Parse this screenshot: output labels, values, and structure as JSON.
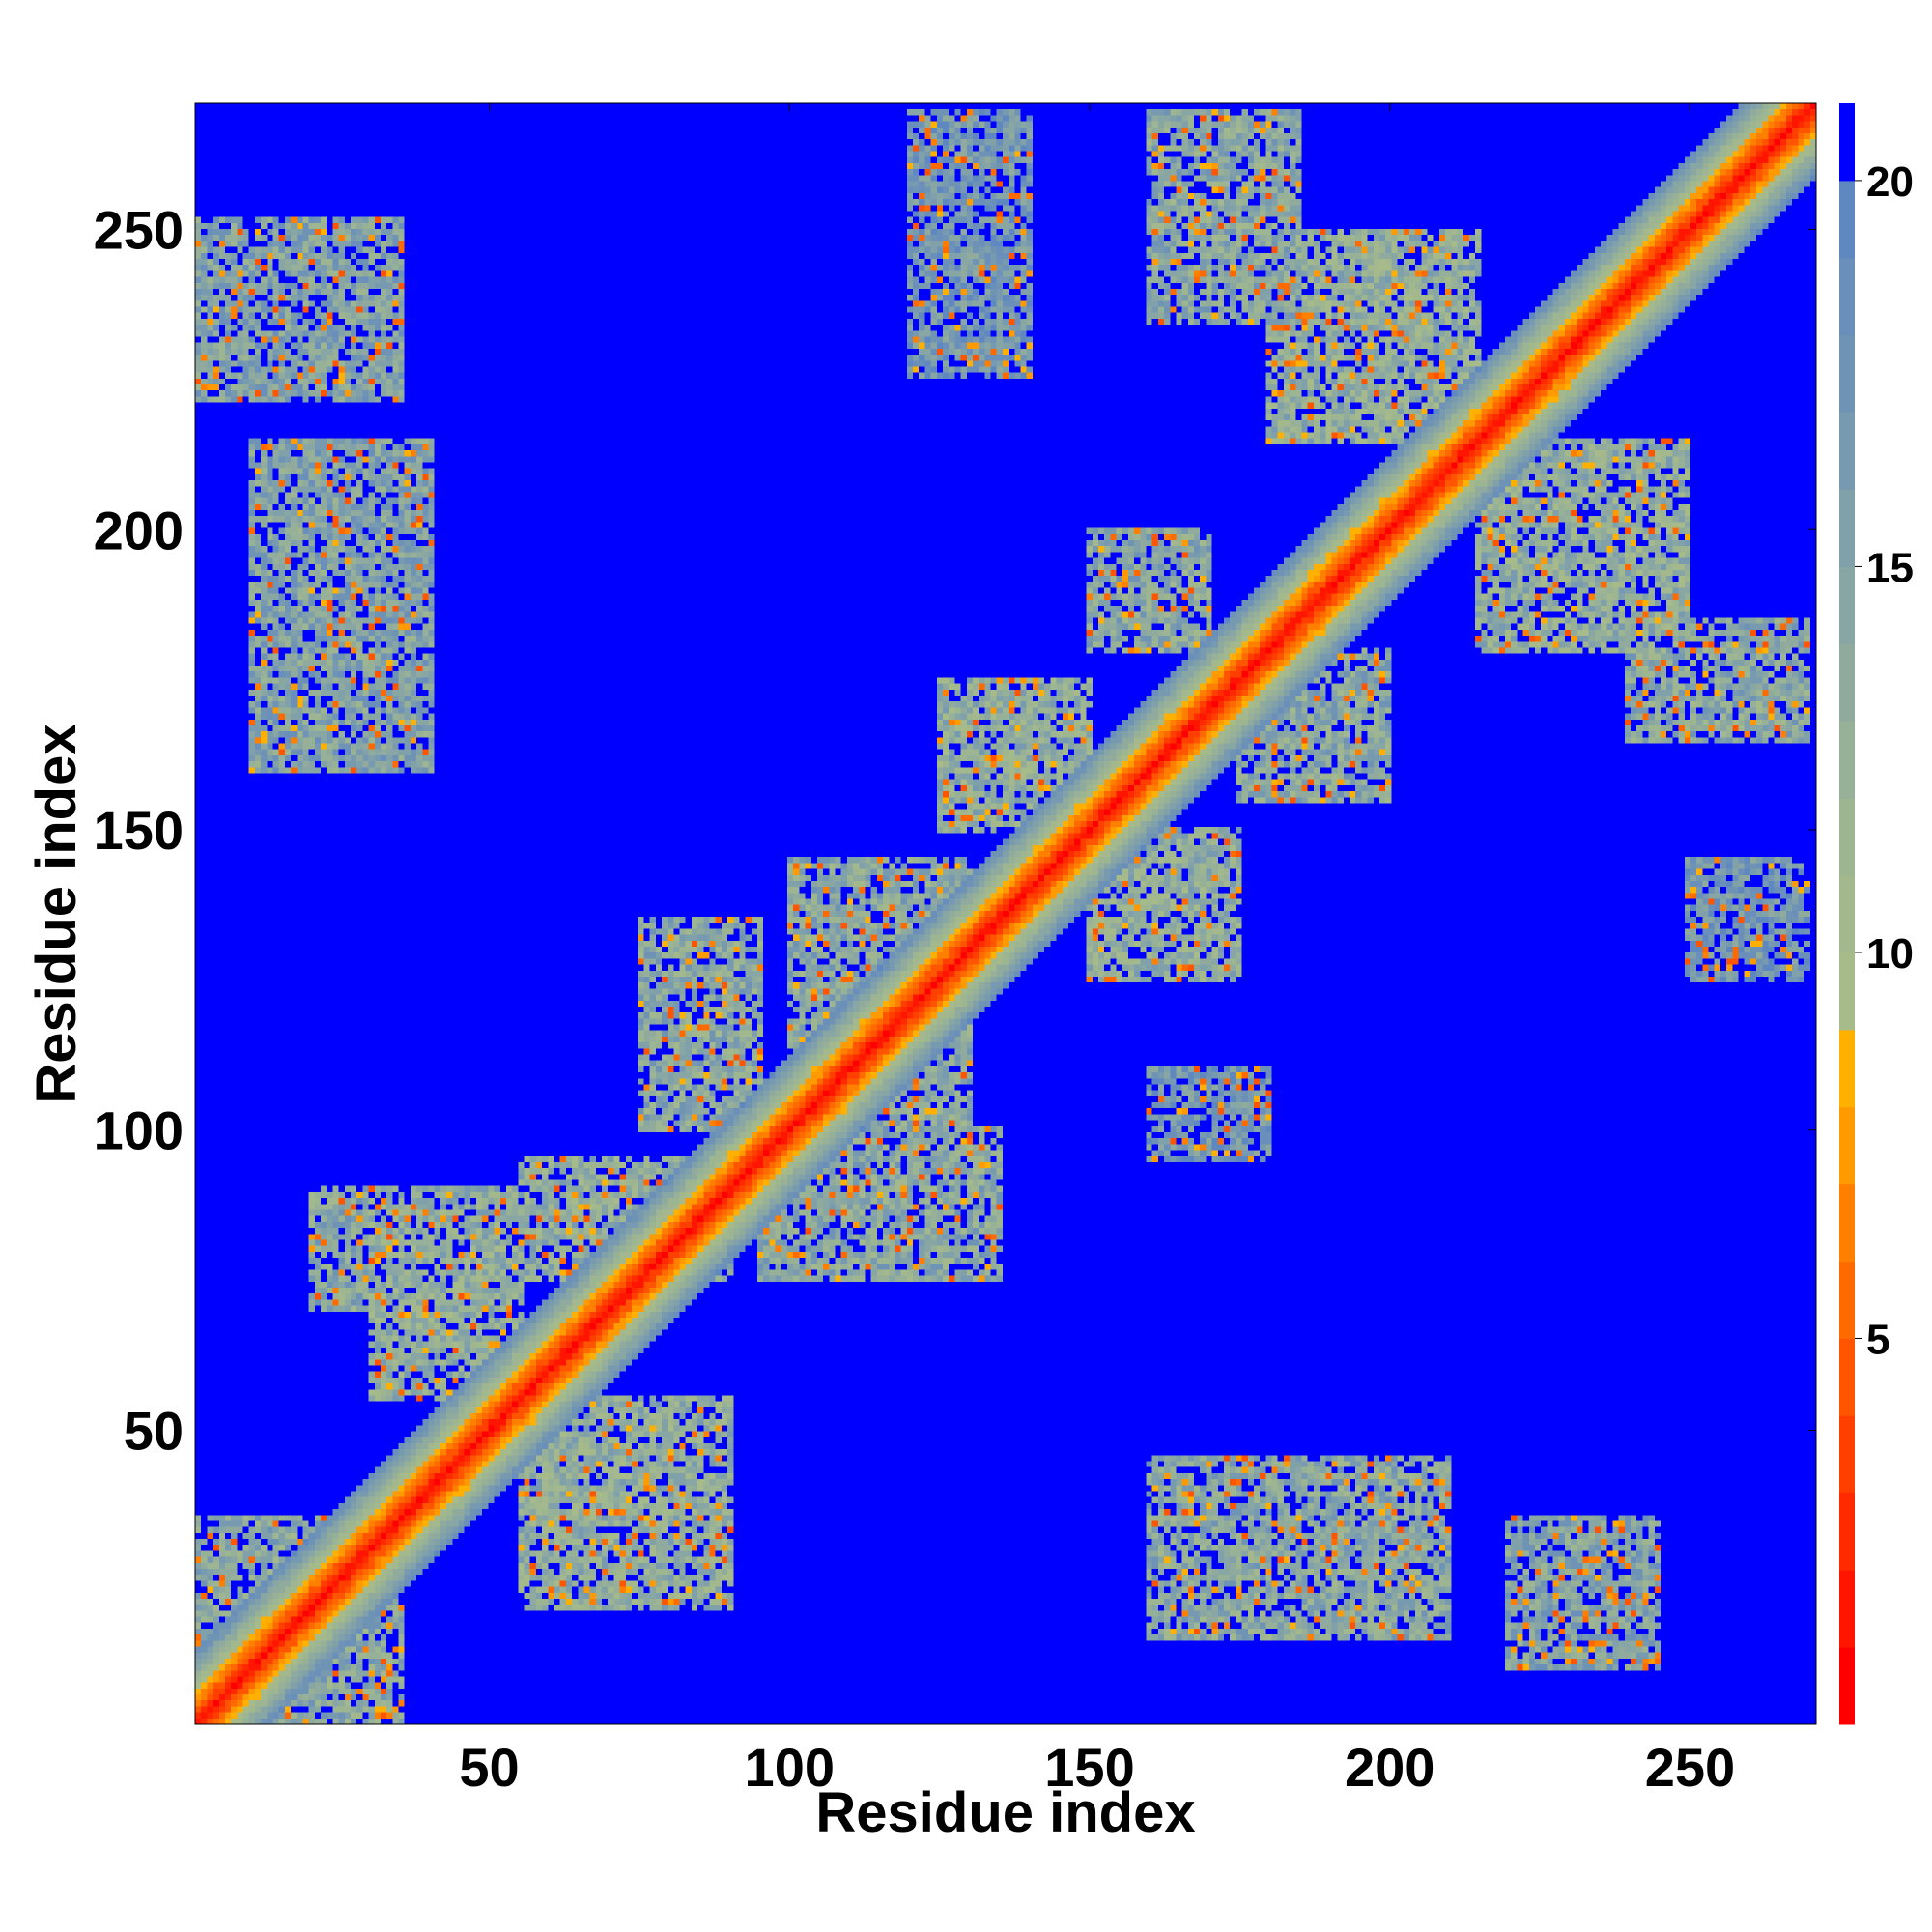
{
  "chart_data": {
    "type": "heatmap",
    "title": "",
    "xlabel": "Residue index",
    "ylabel": "Residue index",
    "n_residues": 271,
    "xlim": [
      1,
      271
    ],
    "ylim": [
      1,
      271
    ],
    "x_ticks": [
      50,
      100,
      150,
      200,
      250
    ],
    "y_ticks": [
      50,
      100,
      150,
      200,
      250
    ],
    "colorbar": {
      "ticks": [
        5,
        10,
        15,
        20
      ],
      "range": [
        0,
        21
      ],
      "levels": [
        {
          "max": 1,
          "color": "#ff0000"
        },
        {
          "max": 2,
          "color": "#ff1500"
        },
        {
          "max": 3,
          "color": "#ff2a00"
        },
        {
          "max": 4,
          "color": "#ff3f00"
        },
        {
          "max": 5,
          "color": "#ff5500"
        },
        {
          "max": 6,
          "color": "#ff6a00"
        },
        {
          "max": 7,
          "color": "#ff8000"
        },
        {
          "max": 8,
          "color": "#ff9a00"
        },
        {
          "max": 9,
          "color": "#ffb000"
        },
        {
          "max": 10,
          "color": "#a6ba8a"
        },
        {
          "max": 11,
          "color": "#a3b88c"
        },
        {
          "max": 12,
          "color": "#9eb592"
        },
        {
          "max": 13,
          "color": "#97b098"
        },
        {
          "max": 14,
          "color": "#90ab9e"
        },
        {
          "max": 15,
          "color": "#88a6a3"
        },
        {
          "max": 16,
          "color": "#80a0aa"
        },
        {
          "max": 17,
          "color": "#789ab0"
        },
        {
          "max": 18,
          "color": "#6f93b5"
        },
        {
          "max": 19,
          "color": "#6a8fba"
        },
        {
          "max": 20,
          "color": "#5f88c0"
        },
        {
          "max": 21,
          "color": "#0000ff"
        }
      ]
    },
    "diagonal_band": {
      "core_value": 1,
      "halfwidth": 12
    },
    "contact_regions": [
      {
        "x": [
          1,
          35
        ],
        "y": [
          222,
          252
        ],
        "mean": 15
      },
      {
        "x": [
          10,
          40
        ],
        "y": [
          160,
          215
        ],
        "mean": 15
      },
      {
        "x": [
          120,
          140
        ],
        "y": [
          226,
          270
        ],
        "mean": 17
      },
      {
        "x": [
          160,
          185
        ],
        "y": [
          235,
          270
        ],
        "mean": 14
      },
      {
        "x": [
          180,
          215
        ],
        "y": [
          215,
          250
        ],
        "mean": 13
      },
      {
        "x": [
          215,
          250
        ],
        "y": [
          180,
          215
        ],
        "mean": 13
      },
      {
        "x": [
          240,
          270
        ],
        "y": [
          165,
          185
        ],
        "mean": 14
      },
      {
        "x": [
          150,
          170
        ],
        "y": [
          180,
          200
        ],
        "mean": 14
      },
      {
        "x": [
          125,
          150
        ],
        "y": [
          150,
          175
        ],
        "mean": 13
      },
      {
        "x": [
          150,
          175
        ],
        "y": [
          125,
          150
        ],
        "mean": 13
      },
      {
        "x": [
          175,
          200
        ],
        "y": [
          155,
          180
        ],
        "mean": 14
      },
      {
        "x": [
          100,
          130
        ],
        "y": [
          100,
          145
        ],
        "mean": 14
      },
      {
        "x": [
          75,
          95
        ],
        "y": [
          100,
          135
        ],
        "mean": 14
      },
      {
        "x": [
          55,
          90
        ],
        "y": [
          75,
          95
        ],
        "mean": 13
      },
      {
        "x": [
          95,
          135
        ],
        "y": [
          75,
          100
        ],
        "mean": 14
      },
      {
        "x": [
          30,
          55
        ],
        "y": [
          55,
          90
        ],
        "mean": 13
      },
      {
        "x": [
          20,
          45
        ],
        "y": [
          70,
          90
        ],
        "mean": 14
      },
      {
        "x": [
          55,
          90
        ],
        "y": [
          20,
          55
        ],
        "mean": 13
      },
      {
        "x": [
          160,
          210
        ],
        "y": [
          15,
          45
        ],
        "mean": 14
      },
      {
        "x": [
          220,
          245
        ],
        "y": [
          10,
          35
        ],
        "mean": 15
      },
      {
        "x": [
          1,
          35
        ],
        "y": [
          1,
          35
        ],
        "mean": 14
      },
      {
        "x": [
          250,
          270
        ],
        "y": [
          125,
          145
        ],
        "mean": 17
      },
      {
        "x": [
          160,
          180
        ],
        "y": [
          95,
          110
        ],
        "mean": 17
      }
    ]
  }
}
